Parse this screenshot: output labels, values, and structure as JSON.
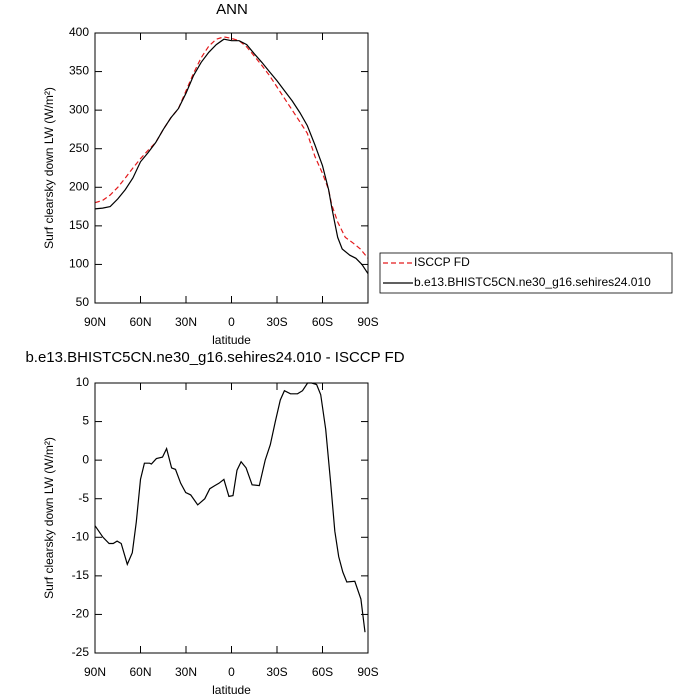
{
  "chart_data": [
    {
      "type": "line",
      "title": "ANN",
      "xlabel": "latitude",
      "ylabel": "Surf clearsky down LW (W/m²)",
      "xlim": [
        90,
        -90
      ],
      "xticks": [
        {
          "value": 90,
          "label": "90N"
        },
        {
          "value": 60,
          "label": "60N"
        },
        {
          "value": 30,
          "label": "30N"
        },
        0,
        {
          "value": -30,
          "label": "30S"
        },
        {
          "value": -60,
          "label": "60S"
        },
        {
          "value": -90,
          "label": "90S"
        }
      ],
      "ylim": [
        50,
        400
      ],
      "yticks": [
        50,
        100,
        150,
        200,
        250,
        300,
        350,
        400
      ],
      "legend": "right",
      "series": [
        {
          "name": "ISCCP FD",
          "color": "#e41a1c",
          "dash": true,
          "x": [
            90,
            85,
            80,
            75,
            70,
            65,
            60,
            55,
            50,
            45,
            40,
            35,
            30,
            25,
            20,
            15,
            10,
            5,
            0,
            -5,
            -10,
            -15,
            -20,
            -25,
            -30,
            -35,
            -40,
            -45,
            -50,
            -55,
            -60,
            -64,
            -66,
            -70,
            -75,
            -80,
            -85,
            -90
          ],
          "values": [
            180,
            183,
            190,
            200,
            212,
            225,
            237,
            248,
            258,
            275,
            290,
            302,
            325,
            348,
            368,
            383,
            392,
            395,
            393,
            390,
            382,
            370,
            358,
            345,
            330,
            315,
            300,
            285,
            270,
            240,
            218,
            197,
            178,
            155,
            135,
            128,
            120,
            108
          ]
        },
        {
          "name": "b.e13.BHISTC5CN.ne30_g16.sehires24.010",
          "color": "#000000",
          "dash": false,
          "x": [
            90,
            85,
            80,
            75,
            70,
            65,
            60,
            55,
            50,
            45,
            40,
            35,
            30,
            25,
            20,
            15,
            10,
            5,
            0,
            -5,
            -10,
            -15,
            -20,
            -25,
            -30,
            -35,
            -40,
            -45,
            -50,
            -55,
            -60,
            -64,
            -66,
            -68,
            -70,
            -73,
            -78,
            -82,
            -86,
            -90
          ],
          "values": [
            172,
            173,
            175,
            185,
            197,
            212,
            233,
            245,
            258,
            275,
            290,
            302,
            322,
            345,
            362,
            375,
            385,
            392,
            390,
            390,
            385,
            373,
            362,
            350,
            338,
            325,
            312,
            297,
            280,
            255,
            228,
            197,
            175,
            155,
            135,
            120,
            112,
            108,
            100,
            88
          ]
        }
      ]
    },
    {
      "type": "line",
      "title": "b.e13.BHISTC5CN.ne30_g16.sehires24.010 - ISCCP FD",
      "xlabel": "latitude",
      "ylabel": "Surf clearsky down LW (W/m²)",
      "xlim": [
        90,
        -90
      ],
      "xticks": [
        {
          "value": 90,
          "label": "90N"
        },
        {
          "value": 60,
          "label": "60N"
        },
        {
          "value": 30,
          "label": "30N"
        },
        0,
        {
          "value": -30,
          "label": "30S"
        },
        {
          "value": -60,
          "label": "60S"
        },
        {
          "value": -90,
          "label": "90S"
        }
      ],
      "ylim": [
        -25,
        10
      ],
      "yticks": [
        -25,
        -20,
        -15,
        -10,
        -5,
        0,
        5,
        10
      ],
      "series": [
        {
          "color": "#000000",
          "dash": false,
          "x": [
            90,
            84.7,
            80.7,
            78,
            75.4,
            72.7,
            68.7,
            65.4,
            62.8,
            60,
            57.4,
            54,
            52.8,
            49.5,
            45.5,
            42.8,
            39.5,
            36.9,
            33.5,
            30.2,
            26.9,
            22.3,
            17.6,
            14.3,
            11,
            8.3,
            5,
            1.7,
            -1,
            -3.6,
            -6.3,
            -9.6,
            -13.6,
            -18.3,
            -22.2,
            -25.6,
            -28.9,
            -32.2,
            -34.9,
            -38.9,
            -43.5,
            -46.8,
            -50.2,
            -52.8,
            -56.1,
            -58.8,
            -62.1,
            -65.4,
            -68.1,
            -70.7,
            -73.4,
            -76,
            -81.3,
            -85.3,
            -88
          ],
          "values": [
            -8.5,
            -10,
            -10.8,
            -10.8,
            -10.5,
            -10.8,
            -13.5,
            -12,
            -8,
            -2.5,
            -0.4,
            -0.4,
            -0.5,
            0.2,
            0.4,
            1.5,
            -1,
            -1.2,
            -3,
            -4.2,
            -4.5,
            -5.8,
            -5,
            -3.7,
            -3.3,
            -3,
            -2.5,
            -4.7,
            -4.6,
            -1.3,
            -0.2,
            -1,
            -3.2,
            -3.3,
            0,
            2,
            5,
            7.8,
            9,
            8.6,
            8.6,
            9,
            10,
            10,
            9.8,
            8.5,
            4,
            -3,
            -9.2,
            -12.5,
            -14.5,
            -15.8,
            -15.7,
            -18,
            -22.3
          ]
        }
      ]
    }
  ]
}
